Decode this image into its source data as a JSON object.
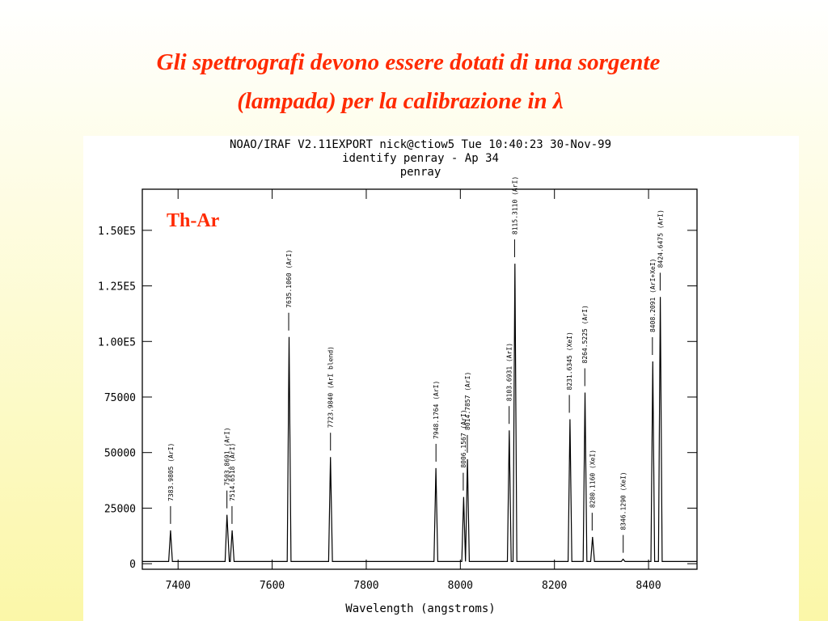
{
  "slide": {
    "title": [
      "Gli spettrografi devono essere dotati di una sorgente",
      "(lampada) per la calibrazione in λ"
    ]
  },
  "chart_data": {
    "type": "line",
    "header": [
      "NOAO/IRAF V2.11EXPORT nick@ctiow5 Tue 10:40:23 30-Nov-99",
      "identify penray - Ap 34",
      "penray"
    ],
    "annotation": "Th-Ar",
    "x_label": "Wavelength (angstroms)",
    "xlim": [
      7324,
      8503
    ],
    "ylim": [
      -2500,
      168500
    ],
    "xticks": [
      7400,
      7600,
      7800,
      8000,
      8200,
      8400
    ],
    "yticks": [
      0,
      25000,
      50000,
      75000,
      {
        "value": 100000,
        "label": "1.00E5"
      },
      {
        "value": 125000,
        "label": "1.25E5"
      },
      {
        "value": 150000,
        "label": "1.50E5"
      }
    ],
    "x": [
      7324,
      7380,
      7384,
      7388,
      7500,
      7504,
      7509,
      7511,
      7515,
      7519,
      7632,
      7636,
      7640,
      7720,
      7724,
      7728,
      7944,
      7948,
      7952,
      8003,
      8007,
      8011,
      8015,
      8019,
      8100,
      8104,
      8108,
      8112,
      8116,
      8120,
      8229,
      8233,
      8237,
      8261,
      8265,
      8269,
      8277,
      8281,
      8285,
      8342,
      8346,
      8350,
      8405,
      8409,
      8413,
      8421,
      8425,
      8429,
      8503
    ],
    "series": [
      {
        "name": "penray",
        "color": "#000000",
        "values": [
          1000,
          1000,
          15000,
          1000,
          1000,
          22000,
          1000,
          1000,
          15000,
          1000,
          1000,
          102000,
          1000,
          1000,
          48000,
          1000,
          1000,
          43000,
          1000,
          1000,
          30000,
          1000,
          47000,
          1000,
          1000,
          60000,
          1000,
          1000,
          135000,
          1000,
          1000,
          65000,
          1000,
          1000,
          77000,
          1000,
          1000,
          12000,
          1000,
          1000,
          2000,
          1000,
          1000,
          91000,
          1000,
          1000,
          120000,
          1000,
          1000
        ]
      }
    ],
    "line_ids": {
      "x": [
        7383.9805,
        7503.8691,
        7514.6518,
        7635.106,
        7723.984,
        7948.1764,
        8006.1567,
        8014.7857,
        8103.6931,
        8115.311,
        8231.6345,
        8264.5225,
        8280.116,
        8346.129,
        8408.2091,
        8424.6475
      ],
      "labels": [
        "7383.9805 (ArI)",
        "7503.8691 (ArI)",
        "7514.6518 (ArI)",
        "7635.1060 (ArI)",
        "7723.9840 (ArI blend)",
        "7948.1764 (ArI)",
        "8006.1567 (ArI)",
        "8014.7857 (ArI)",
        "8103.6931 (ArI)",
        "8115.3110 (ArI)",
        "8231.6345 (XeI)",
        "8264.5225 (ArI)",
        "8280.1160 (XeI)",
        "8346.1290 (XeI)",
        "8408.2091 (ArI+XeI)",
        "8424.6475 (ArI)"
      ]
    }
  }
}
